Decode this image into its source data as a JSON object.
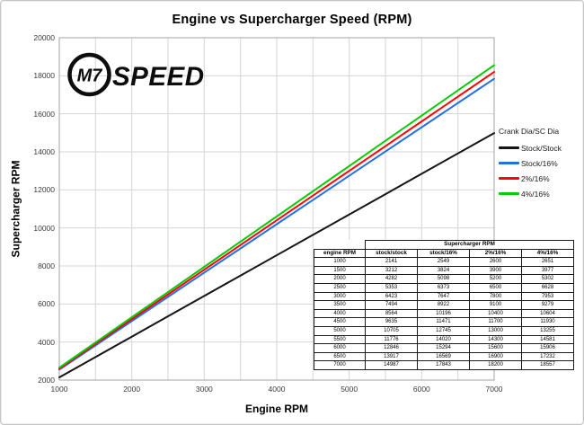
{
  "title": "Engine vs Supercharger Speed (RPM)",
  "logo": {
    "circle_text": "M7",
    "word": "SPEED"
  },
  "axes": {
    "x_label": "Engine RPM",
    "y_label": "Supercharger RPM"
  },
  "legend": {
    "title": "Crank Dia/SC Dia",
    "items": [
      {
        "label": "Stock/Stock",
        "color": "#151515"
      },
      {
        "label": "Stock/16%",
        "color": "#2570e0"
      },
      {
        "label": "2%/16%",
        "color": "#f80505"
      },
      {
        "label": "4%/16%",
        "color": "#04cc04"
      }
    ]
  },
  "chart_data": {
    "type": "line",
    "title": "Engine vs Supercharger Speed (RPM)",
    "xlabel": "Engine RPM",
    "ylabel": "Supercharger RPM",
    "xlim": [
      1000,
      7000
    ],
    "ylim": [
      2000,
      20000
    ],
    "x_ticks": [
      1000,
      2000,
      3000,
      4000,
      5000,
      6000,
      7000
    ],
    "y_ticks": [
      2000,
      4000,
      6000,
      8000,
      10000,
      12000,
      14000,
      16000,
      18000,
      20000
    ],
    "x_minor_step": 500,
    "grid": true,
    "legend_position": "right",
    "grid_color": "#d6d6d6",
    "border_color": "#a3a3a3",
    "x": [
      1000,
      1500,
      2000,
      2500,
      3000,
      3500,
      4000,
      4500,
      5000,
      5500,
      6000,
      6500,
      7000
    ],
    "series": [
      {
        "name": "Stock/Stock",
        "color": "#151515",
        "values": [
          2141,
          3212,
          4282,
          5353,
          6423,
          7494,
          8564,
          9635,
          10705,
          11776,
          12846,
          13917,
          14987
        ]
      },
      {
        "name": "Stock/16%",
        "color": "#2570e0",
        "values": [
          2549,
          3824,
          5098,
          6373,
          7647,
          8922,
          10196,
          11471,
          12745,
          14020,
          15294,
          16569,
          17843
        ]
      },
      {
        "name": "2%/16%",
        "color": "#f80505",
        "values": [
          2600,
          3900,
          5200,
          6500,
          7800,
          9100,
          10400,
          11700,
          13000,
          14300,
          15600,
          16900,
          18200
        ]
      },
      {
        "name": "4%/16%",
        "color": "#04cc04",
        "values": [
          2651,
          3977,
          5302,
          6628,
          7953,
          9279,
          10604,
          11930,
          13255,
          14581,
          15906,
          17232,
          18557
        ]
      }
    ]
  },
  "table": {
    "group_header": "Supercharger RPM",
    "col_headers": [
      "engine RPM",
      "stock/stock",
      "stock/16%",
      "2%/16%",
      "4%/16%"
    ],
    "rows": [
      [
        "1000",
        "2141",
        "2549",
        "2600",
        "2651"
      ],
      [
        "1500",
        "3212",
        "3824",
        "3900",
        "3977"
      ],
      [
        "2000",
        "4282",
        "5098",
        "5200",
        "5302"
      ],
      [
        "2500",
        "5353",
        "6373",
        "6500",
        "6628"
      ],
      [
        "3000",
        "6423",
        "7647",
        "7800",
        "7953"
      ],
      [
        "3500",
        "7494",
        "8922",
        "9100",
        "9279"
      ],
      [
        "4000",
        "8564",
        "10196",
        "10400",
        "10604"
      ],
      [
        "4500",
        "9635",
        "11471",
        "11700",
        "11930"
      ],
      [
        "5000",
        "10705",
        "12745",
        "13000",
        "13255"
      ],
      [
        "5500",
        "11776",
        "14020",
        "14300",
        "14581"
      ],
      [
        "6000",
        "12846",
        "15294",
        "15600",
        "15906"
      ],
      [
        "6500",
        "13917",
        "16569",
        "16900",
        "17232"
      ],
      [
        "7000",
        "14987",
        "17843",
        "18200",
        "18557"
      ]
    ]
  }
}
